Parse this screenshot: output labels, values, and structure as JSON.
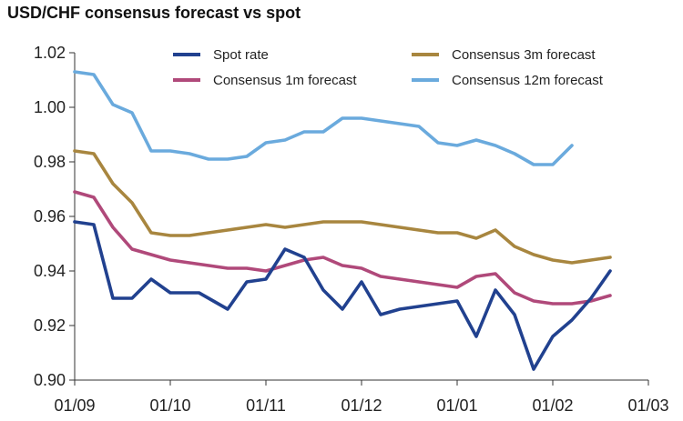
{
  "chart_data": {
    "type": "line",
    "title": "USD/CHF consensus forecast vs spot",
    "xlabel": "",
    "ylabel": "",
    "x": [
      0,
      0.5,
      1,
      1.5,
      2,
      2.5,
      3,
      3.5,
      4,
      4.5,
      5,
      5.5,
      6,
      6.5,
      7,
      7.5,
      8,
      8.5,
      9,
      9.5,
      10,
      10.5,
      11,
      11.5,
      12,
      12.5,
      13,
      13.5,
      14,
      14.5,
      15,
      15.5,
      16,
      16.5,
      17,
      17.5,
      18,
      18.5,
      19,
      19.5,
      20,
      20.5,
      21,
      21.5,
      22,
      22.5,
      23,
      23.5,
      24
    ],
    "xlim": [
      0,
      30
    ],
    "ylim": [
      0.9,
      1.02
    ],
    "x_ticks": [
      {
        "pos": 0,
        "label": "01/09"
      },
      {
        "pos": 5,
        "label": "01/10"
      },
      {
        "pos": 10,
        "label": "01/11"
      },
      {
        "pos": 15,
        "label": "01/12"
      },
      {
        "pos": 20,
        "label": "01/01"
      },
      {
        "pos": 25,
        "label": "01/02"
      },
      {
        "pos": 30,
        "label": "01/03"
      }
    ],
    "y_ticks": [
      {
        "value": 0.9,
        "label": "0.90"
      },
      {
        "value": 0.92,
        "label": "0.92"
      },
      {
        "value": 0.94,
        "label": "0.94"
      },
      {
        "value": 0.96,
        "label": "0.96"
      },
      {
        "value": 0.98,
        "label": "0.98"
      },
      {
        "value": 1.0,
        "label": "1.00"
      },
      {
        "value": 1.02,
        "label": "1.02"
      }
    ],
    "series": [
      {
        "name": "Spot rate",
        "color": "#21418f",
        "points": [
          [
            0,
            0.958
          ],
          [
            1,
            0.957
          ],
          [
            2,
            0.93
          ],
          [
            2.5,
            0.93
          ],
          [
            3,
            0.93
          ],
          [
            4,
            0.937
          ],
          [
            5,
            0.932
          ],
          [
            6,
            0.932
          ],
          [
            6.5,
            0.932
          ],
          [
            8,
            0.926
          ],
          [
            9,
            0.936
          ],
          [
            10,
            0.937
          ],
          [
            11,
            0.948
          ],
          [
            12,
            0.945
          ],
          [
            13,
            0.933
          ],
          [
            14,
            0.926
          ],
          [
            15,
            0.936
          ],
          [
            16,
            0.924
          ],
          [
            17,
            0.926
          ],
          [
            20,
            0.929
          ],
          [
            21,
            0.916
          ],
          [
            22,
            0.933
          ],
          [
            23,
            0.924
          ],
          [
            24,
            0.904
          ],
          [
            25,
            0.916
          ],
          [
            26,
            0.922
          ],
          [
            27,
            0.93
          ],
          [
            28,
            0.94
          ]
        ]
      },
      {
        "name": "Consensus 1m forecast",
        "color": "#b0497a",
        "points": [
          [
            0,
            0.969
          ],
          [
            1,
            0.967
          ],
          [
            2,
            0.956
          ],
          [
            3,
            0.948
          ],
          [
            4,
            0.946
          ],
          [
            5,
            0.944
          ],
          [
            6,
            0.943
          ],
          [
            7,
            0.942
          ],
          [
            8,
            0.941
          ],
          [
            9,
            0.941
          ],
          [
            10,
            0.94
          ],
          [
            11,
            0.942
          ],
          [
            12,
            0.944
          ],
          [
            13,
            0.945
          ],
          [
            14,
            0.942
          ],
          [
            15,
            0.941
          ],
          [
            16,
            0.938
          ],
          [
            17,
            0.937
          ],
          [
            18,
            0.936
          ],
          [
            19,
            0.935
          ],
          [
            20,
            0.934
          ],
          [
            21,
            0.938
          ],
          [
            22,
            0.939
          ],
          [
            23,
            0.932
          ],
          [
            24,
            0.929
          ],
          [
            25,
            0.928
          ],
          [
            26,
            0.928
          ],
          [
            27,
            0.929
          ],
          [
            28,
            0.931
          ]
        ]
      },
      {
        "name": "Consensus 3m forecast",
        "color": "#a8863f",
        "points": [
          [
            0,
            0.984
          ],
          [
            1,
            0.983
          ],
          [
            2,
            0.972
          ],
          [
            3,
            0.965
          ],
          [
            4,
            0.954
          ],
          [
            5,
            0.953
          ],
          [
            6,
            0.953
          ],
          [
            7,
            0.954
          ],
          [
            8,
            0.955
          ],
          [
            9,
            0.956
          ],
          [
            10,
            0.957
          ],
          [
            11,
            0.956
          ],
          [
            12,
            0.957
          ],
          [
            13,
            0.958
          ],
          [
            14,
            0.958
          ],
          [
            15,
            0.958
          ],
          [
            16,
            0.957
          ],
          [
            17,
            0.956
          ],
          [
            18,
            0.955
          ],
          [
            19,
            0.954
          ],
          [
            20,
            0.954
          ],
          [
            21,
            0.952
          ],
          [
            22,
            0.955
          ],
          [
            23,
            0.949
          ],
          [
            24,
            0.946
          ],
          [
            25,
            0.944
          ],
          [
            26,
            0.943
          ],
          [
            27,
            0.944
          ],
          [
            28,
            0.945
          ]
        ]
      },
      {
        "name": "Consensus 12m forecast",
        "color": "#6aaadd",
        "points": [
          [
            0,
            1.013
          ],
          [
            1,
            1.012
          ],
          [
            2,
            1.001
          ],
          [
            3,
            0.998
          ],
          [
            4,
            0.984
          ],
          [
            5,
            0.984
          ],
          [
            6,
            0.983
          ],
          [
            7,
            0.981
          ],
          [
            8,
            0.981
          ],
          [
            9,
            0.982
          ],
          [
            10,
            0.987
          ],
          [
            11,
            0.988
          ],
          [
            12,
            0.991
          ],
          [
            13,
            0.991
          ],
          [
            14,
            0.996
          ],
          [
            15,
            0.996
          ],
          [
            16,
            0.995
          ],
          [
            17,
            0.994
          ],
          [
            18,
            0.993
          ],
          [
            19,
            0.987
          ],
          [
            20,
            0.986
          ],
          [
            21,
            0.988
          ],
          [
            22,
            0.986
          ],
          [
            23,
            0.983
          ],
          [
            24,
            0.979
          ],
          [
            25,
            0.979
          ],
          [
            26,
            0.986
          ]
        ]
      }
    ],
    "legend": [
      {
        "name": "Spot rate",
        "color": "#21418f"
      },
      {
        "name": "Consensus 3m forecast",
        "color": "#a8863f"
      },
      {
        "name": "Consensus 1m forecast",
        "color": "#b0497a"
      },
      {
        "name": "Consensus 12m forecast",
        "color": "#6aaadd"
      }
    ],
    "legend_position": "top",
    "grid": false
  }
}
